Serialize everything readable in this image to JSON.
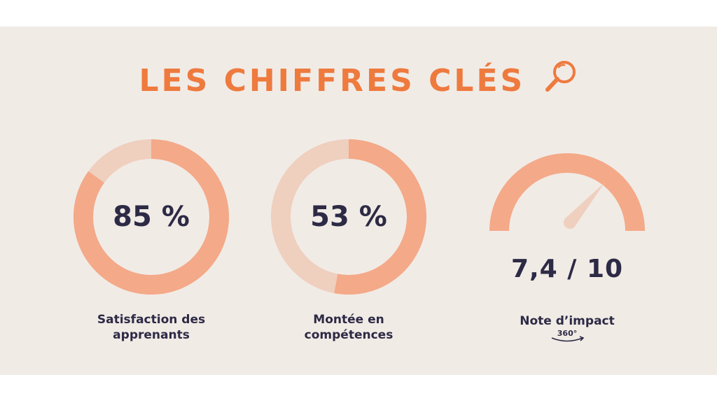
{
  "title": "LES CHIFFRES CLÉS",
  "colors": {
    "background_band": "#f1ebe6",
    "accent": "#ee7a3e",
    "fill": "#f4a988",
    "track": "#efcfbe",
    "text_dark": "#2d2a45"
  },
  "icons": {
    "title": "magnifying-glass-icon",
    "badge": "rotation-arrow-icon"
  },
  "chart_data": [
    {
      "type": "pie",
      "style": "donut",
      "value_label": "85 %",
      "value": 85,
      "max": 100,
      "label_line1": "Satisfaction des",
      "label_line2": "apprenants"
    },
    {
      "type": "pie",
      "style": "donut",
      "value_label": "53 %",
      "value": 53,
      "max": 100,
      "label_line1": "Montée en",
      "label_line2": "compétences"
    },
    {
      "type": "gauge",
      "value_label": "7,4 / 10",
      "value": 7.4,
      "max": 10,
      "label_line1": "Note d’impact",
      "badge": "360°"
    }
  ]
}
